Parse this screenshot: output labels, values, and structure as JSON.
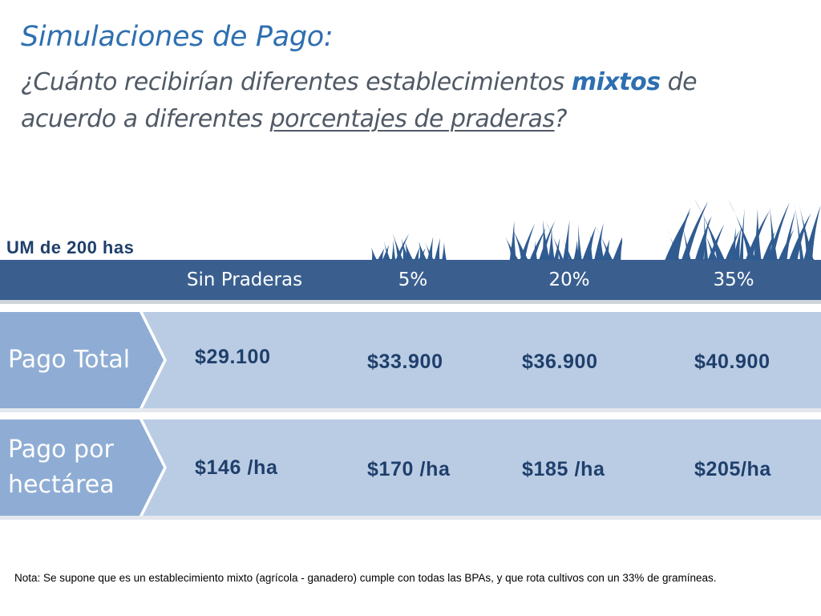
{
  "title": "Simulaciones de Pago:",
  "subtitle": {
    "part1": "¿Cuánto recibirían diferentes establecimientos ",
    "highlight": "mixtos",
    "part2": " de acuerdo a diferentes ",
    "underline": "porcentajes de praderas",
    "part3": "?"
  },
  "um_label": "UM de 200 has",
  "columns": [
    "Sin Praderas",
    "5%",
    "20%",
    "35%"
  ],
  "rows": [
    {
      "label": "Pago Total",
      "values": [
        "$29.100",
        "$33.900",
        "$36.900",
        "$40.900"
      ]
    },
    {
      "label": "Pago por hectárea",
      "values": [
        "$146 /ha",
        "$170 /ha",
        "$185 /ha",
        "$205/ha"
      ]
    }
  ],
  "icons": {
    "grass_small": "grass-icon",
    "grass_medium": "grass-icon",
    "grass_large": "grass-icon"
  },
  "colors": {
    "title": "#2e6fb0",
    "header_bar": "#3a5f8f",
    "row_bg": "#b9cce4",
    "row_label_bg": "#8fadd4",
    "value_text": "#1f3f6b",
    "grass": "#2f5b91"
  },
  "note": "Nota: Se supone que es un establecimiento mixto (agrícola  - ganadero) cumple con todas las BPAs, y que rota cultivos con un 33% de gramíneas."
}
